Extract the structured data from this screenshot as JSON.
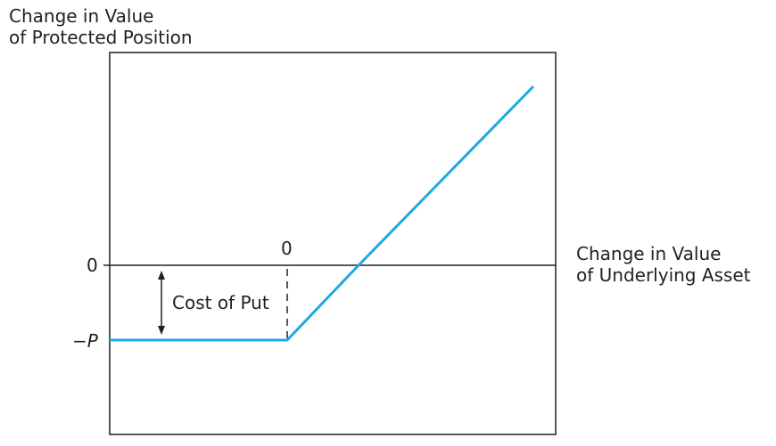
{
  "chart_data": {
    "type": "line",
    "ylabel": [
      "Change in Value",
      "of Protected Position"
    ],
    "xlabel": [
      "Change in Value",
      "of Underlying Asset"
    ],
    "x_tick_label": "0",
    "y_tick_labels": {
      "zero": "0",
      "premium_minus": "−",
      "premium_symbol": "P"
    },
    "annotation": "Cost of Put",
    "series": [
      {
        "color": "#1fa8e1",
        "points": [
          {
            "x": "-",
            "y": "-P"
          },
          {
            "x": "0",
            "y": "-P"
          },
          {
            "x": "P",
            "y": "0"
          },
          {
            "x": "+",
            "y": "+"
          }
        ]
      }
    ],
    "axis_color": "#231f20",
    "grid": false
  }
}
